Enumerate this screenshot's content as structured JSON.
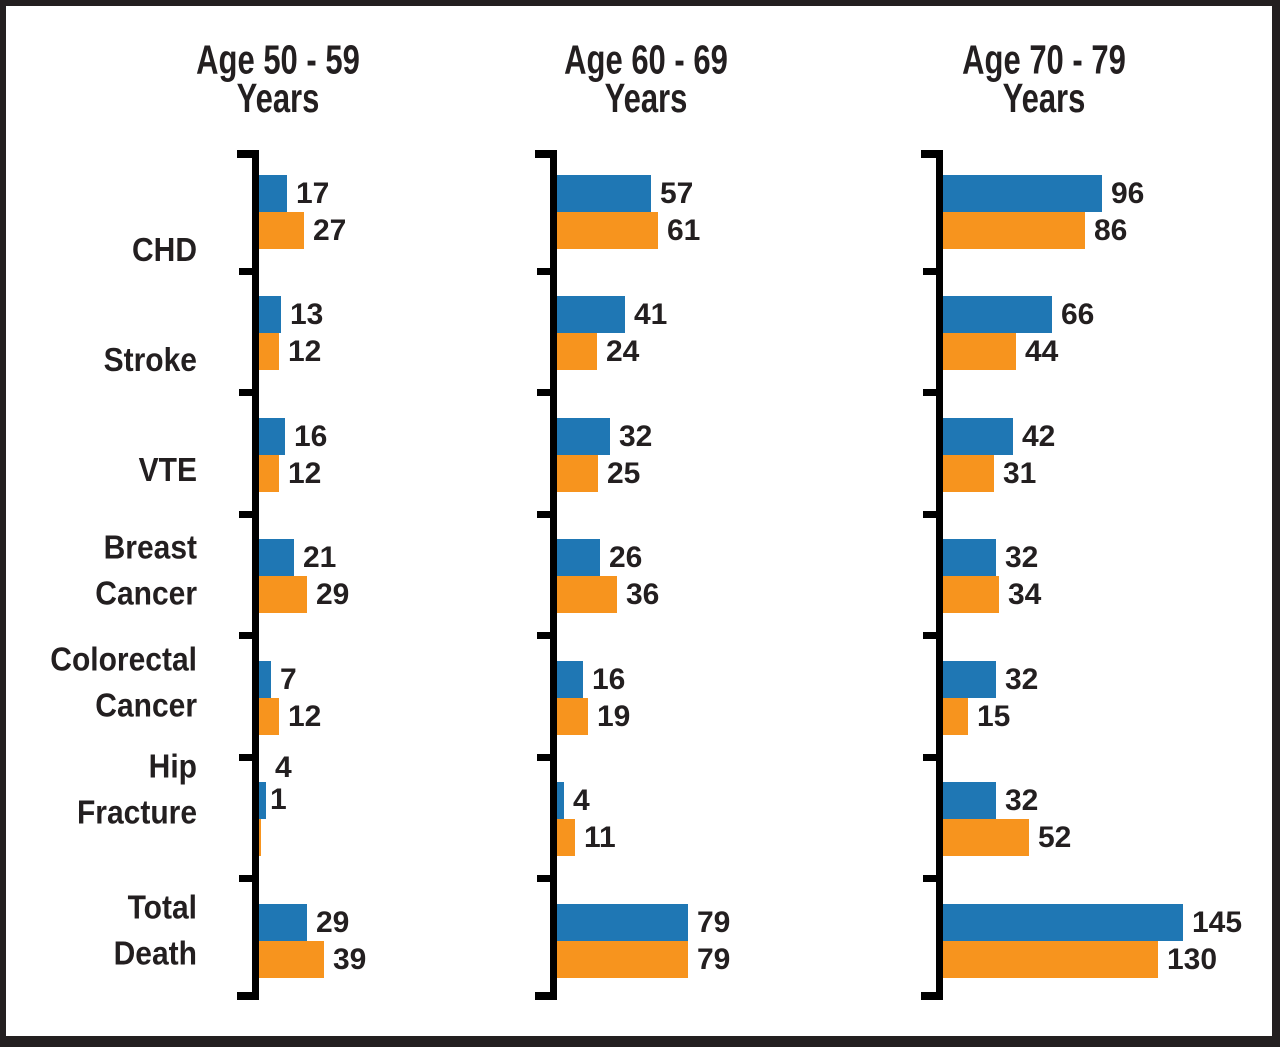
{
  "chart_data": {
    "type": "bar",
    "orientation": "horizontal",
    "legend": "none",
    "grid": false,
    "value_labels": true,
    "xlim": [
      0,
      145
    ],
    "colors": {
      "blue": "#1F77B4",
      "orange": "#F7941E",
      "text": "#231F20",
      "axis": "#000000",
      "frame": "#231F20",
      "background": "#FFFFFF"
    },
    "categories": [
      {
        "label": "CHD",
        "lines": [
          "CHD"
        ]
      },
      {
        "label": "Stroke",
        "lines": [
          "Stroke"
        ]
      },
      {
        "label": "VTE",
        "lines": [
          "VTE"
        ]
      },
      {
        "label": "Breast Cancer",
        "lines": [
          "Breast",
          "Cancer"
        ]
      },
      {
        "label": "Colorectal Cancer",
        "lines": [
          "Colorectal",
          "Cancer"
        ]
      },
      {
        "label": "Hip Fracture",
        "lines": [
          "Hip",
          "Fracture"
        ]
      },
      {
        "label": "Total Death",
        "lines": [
          "Total",
          "Death"
        ]
      }
    ],
    "panels": [
      {
        "title": "Age 50 - 59 Years",
        "title_lines": [
          "Age 50 - 59",
          "Years"
        ],
        "series": [
          {
            "name": "blue",
            "color_key": "blue",
            "values": [
              17,
              13,
              16,
              21,
              7,
              4,
              29
            ]
          },
          {
            "name": "orange",
            "color_key": "orange",
            "values": [
              27,
              12,
              12,
              29,
              12,
              1,
              39
            ]
          }
        ]
      },
      {
        "title": "Age 60 - 69 Years",
        "title_lines": [
          "Age 60 - 69",
          "Years"
        ],
        "series": [
          {
            "name": "blue",
            "color_key": "blue",
            "values": [
              57,
              41,
              32,
              26,
              16,
              4,
              79
            ]
          },
          {
            "name": "orange",
            "color_key": "orange",
            "values": [
              61,
              24,
              25,
              36,
              19,
              11,
              79
            ]
          }
        ]
      },
      {
        "title": "Age 70 - 79 Years",
        "title_lines": [
          "Age 70 - 79",
          "Years"
        ],
        "series": [
          {
            "name": "blue",
            "color_key": "blue",
            "values": [
              96,
              66,
              42,
              32,
              32,
              32,
              145
            ]
          },
          {
            "name": "orange",
            "color_key": "orange",
            "values": [
              86,
              44,
              31,
              34,
              15,
              52,
              130
            ]
          }
        ]
      }
    ]
  }
}
